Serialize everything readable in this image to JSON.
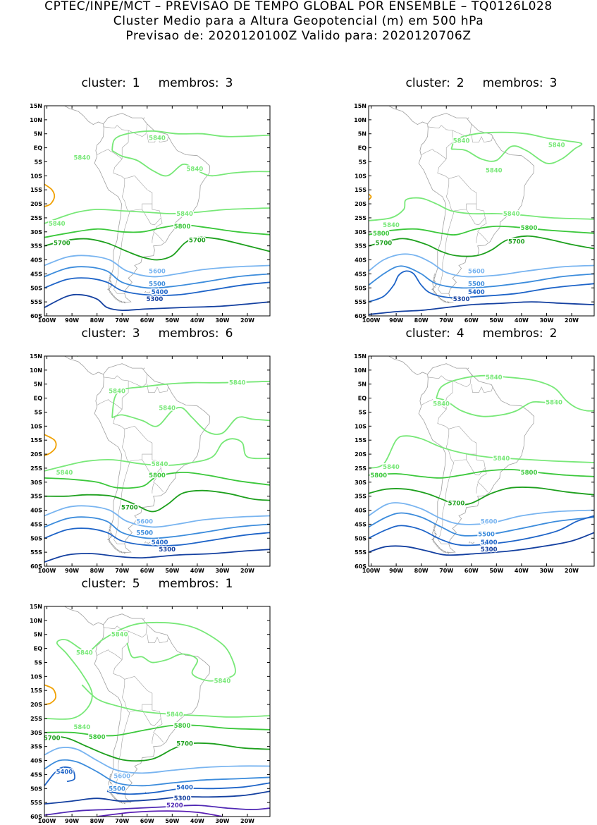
{
  "header": {
    "line1": "CPTEC/INPE/MCT – PREVISAO DE TEMPO GLOBAL POR ENSEMBLE – TQ0126L028",
    "line2": "Cluster Medio para a Altura Geopotencial (m) em 500 hPa",
    "line3": "Previsao de: 2020120100Z    Valido para: 2020120706Z"
  },
  "axes": {
    "lat_labels": [
      "15N",
      "10N",
      "5N",
      "EQ",
      "5S",
      "10S",
      "15S",
      "20S",
      "25S",
      "30S",
      "35S",
      "40S",
      "45S",
      "50S",
      "55S",
      "60S"
    ],
    "lon_labels": [
      "100W",
      "90W",
      "80W",
      "70W",
      "60W",
      "50W",
      "40W",
      "30W",
      "20W"
    ]
  },
  "colors": {
    "c5840": "#78e878",
    "c5800": "#3cc83c",
    "c5700": "#1ea01e",
    "c5600": "#78b4f0",
    "c5500": "#3c8cdc",
    "c5400": "#1e64c8",
    "c5300": "#1440a0",
    "c5200": "#5028b4",
    "c5880": "#f0a000",
    "coast": "#a0a0a0"
  },
  "panels": [
    {
      "cluster_label": "cluster:",
      "cluster_num": "1",
      "members_label": "membros:",
      "members_num": "3",
      "labels": [
        {
          "text": "5840",
          "lon": -56,
          "lat": 3.5,
          "c": "c5840"
        },
        {
          "text": "5840",
          "lon": -86,
          "lat": -3.5,
          "c": "c5840"
        },
        {
          "text": "5840",
          "lon": -41,
          "lat": -7.5,
          "c": "c5840"
        },
        {
          "text": "5840",
          "lon": -45,
          "lat": -23.5,
          "c": "c5840"
        },
        {
          "text": "5840",
          "lon": -96,
          "lat": -27,
          "c": "c5840"
        },
        {
          "text": "5800",
          "lon": -46,
          "lat": -28,
          "c": "c5800"
        },
        {
          "text": "5700",
          "lon": -94,
          "lat": -34,
          "c": "c5700"
        },
        {
          "text": "5700",
          "lon": -40,
          "lat": -33,
          "c": "c5700"
        },
        {
          "text": "5600",
          "lon": -56,
          "lat": -44,
          "c": "c5600"
        },
        {
          "text": "5500",
          "lon": -56,
          "lat": -48.5,
          "c": "c5500"
        },
        {
          "text": "5400",
          "lon": -55,
          "lat": -51.5,
          "c": "c5400"
        },
        {
          "text": "5300",
          "lon": -57,
          "lat": -54,
          "c": "c5300"
        }
      ]
    },
    {
      "cluster_label": "cluster:",
      "cluster_num": "2",
      "members_label": "membros:",
      "members_num": "3",
      "labels": [
        {
          "text": "5840",
          "lon": -64,
          "lat": 2.5,
          "c": "c5840"
        },
        {
          "text": "5840",
          "lon": -26,
          "lat": 1,
          "c": "c5840"
        },
        {
          "text": "5840",
          "lon": -51,
          "lat": -8,
          "c": "c5840"
        },
        {
          "text": "5840",
          "lon": -44,
          "lat": -23.5,
          "c": "c5840"
        },
        {
          "text": "5840",
          "lon": -92,
          "lat": -27.5,
          "c": "c5840"
        },
        {
          "text": "5800",
          "lon": -96,
          "lat": -30.5,
          "c": "c5800"
        },
        {
          "text": "5800",
          "lon": -37,
          "lat": -28.5,
          "c": "c5800"
        },
        {
          "text": "5700",
          "lon": -95,
          "lat": -34,
          "c": "c5700"
        },
        {
          "text": "5700",
          "lon": -42,
          "lat": -33.5,
          "c": "c5700"
        },
        {
          "text": "5600",
          "lon": -58,
          "lat": -44,
          "c": "c5600"
        },
        {
          "text": "5500",
          "lon": -58,
          "lat": -48.5,
          "c": "c5500"
        },
        {
          "text": "5400",
          "lon": -58,
          "lat": -51.5,
          "c": "c5400"
        },
        {
          "text": "5300",
          "lon": -64,
          "lat": -54,
          "c": "c5300"
        }
      ]
    },
    {
      "cluster_label": "cluster:",
      "cluster_num": "3",
      "members_label": "membros:",
      "members_num": "6",
      "labels": [
        {
          "text": "5840",
          "lon": -24,
          "lat": 5.5,
          "c": "c5840"
        },
        {
          "text": "5840",
          "lon": -72,
          "lat": 2.5,
          "c": "c5840"
        },
        {
          "text": "5840",
          "lon": -52,
          "lat": -3.5,
          "c": "c5840"
        },
        {
          "text": "5840",
          "lon": -93,
          "lat": -26.5,
          "c": "c5840"
        },
        {
          "text": "5840",
          "lon": -55,
          "lat": -23.5,
          "c": "c5840"
        },
        {
          "text": "5800",
          "lon": -56,
          "lat": -27.5,
          "c": "c5800"
        },
        {
          "text": "5700",
          "lon": -67,
          "lat": -39,
          "c": "c5700"
        },
        {
          "text": "5600",
          "lon": -61,
          "lat": -44,
          "c": "c5600"
        },
        {
          "text": "5500",
          "lon": -61,
          "lat": -48,
          "c": "c5500"
        },
        {
          "text": "5400",
          "lon": -55,
          "lat": -51.5,
          "c": "c5400"
        },
        {
          "text": "5300",
          "lon": -52,
          "lat": -54,
          "c": "c5300"
        }
      ]
    },
    {
      "cluster_label": "cluster:",
      "cluster_num": "4",
      "members_label": "membros:",
      "members_num": "2",
      "labels": [
        {
          "text": "5840",
          "lon": -51,
          "lat": 7.5,
          "c": "c5840"
        },
        {
          "text": "5840",
          "lon": -72,
          "lat": -2,
          "c": "c5840"
        },
        {
          "text": "5840",
          "lon": -27,
          "lat": -1.5,
          "c": "c5840"
        },
        {
          "text": "5840",
          "lon": -92,
          "lat": -24.5,
          "c": "c5840"
        },
        {
          "text": "5840",
          "lon": -48,
          "lat": -21.5,
          "c": "c5840"
        },
        {
          "text": "5800",
          "lon": -97,
          "lat": -27.5,
          "c": "c5800"
        },
        {
          "text": "5800",
          "lon": -37,
          "lat": -26.5,
          "c": "c5800"
        },
        {
          "text": "5700",
          "lon": -66,
          "lat": -37.5,
          "c": "c5700"
        },
        {
          "text": "5600",
          "lon": -53,
          "lat": -44,
          "c": "c5600"
        },
        {
          "text": "5500",
          "lon": -54,
          "lat": -48.5,
          "c": "c5500"
        },
        {
          "text": "5400",
          "lon": -53,
          "lat": -51.5,
          "c": "c5400"
        },
        {
          "text": "5300",
          "lon": -53,
          "lat": -54,
          "c": "c5300"
        }
      ]
    },
    {
      "cluster_label": "cluster:",
      "cluster_num": "5",
      "members_label": "membros:",
      "members_num": "1",
      "labels": [
        {
          "text": "5840",
          "lon": -71,
          "lat": 5,
          "c": "c5840"
        },
        {
          "text": "5840",
          "lon": -85,
          "lat": -1.5,
          "c": "c5840"
        },
        {
          "text": "5840",
          "lon": -30,
          "lat": -11.5,
          "c": "c5840"
        },
        {
          "text": "5840",
          "lon": -86,
          "lat": -28,
          "c": "c5840"
        },
        {
          "text": "5840",
          "lon": -49,
          "lat": -23.5,
          "c": "c5840"
        },
        {
          "text": "5800",
          "lon": -46,
          "lat": -27.5,
          "c": "c5800"
        },
        {
          "text": "5800",
          "lon": -80,
          "lat": -31.5,
          "c": "c5800"
        },
        {
          "text": "5700",
          "lon": -98,
          "lat": -32,
          "c": "c5700"
        },
        {
          "text": "5700",
          "lon": -45,
          "lat": -34,
          "c": "c5700"
        },
        {
          "text": "5600",
          "lon": -70,
          "lat": -45.5,
          "c": "c5600"
        },
        {
          "text": "5500",
          "lon": -72,
          "lat": -50,
          "c": "c5500"
        },
        {
          "text": "5400",
          "lon": -93,
          "lat": -44,
          "c": "c5400"
        },
        {
          "text": "5400",
          "lon": -45,
          "lat": -49.5,
          "c": "c5400"
        },
        {
          "text": "5300",
          "lon": -46,
          "lat": -53.5,
          "c": "c5300"
        },
        {
          "text": "5200",
          "lon": -49,
          "lat": -56,
          "c": "c5200"
        }
      ]
    }
  ]
}
